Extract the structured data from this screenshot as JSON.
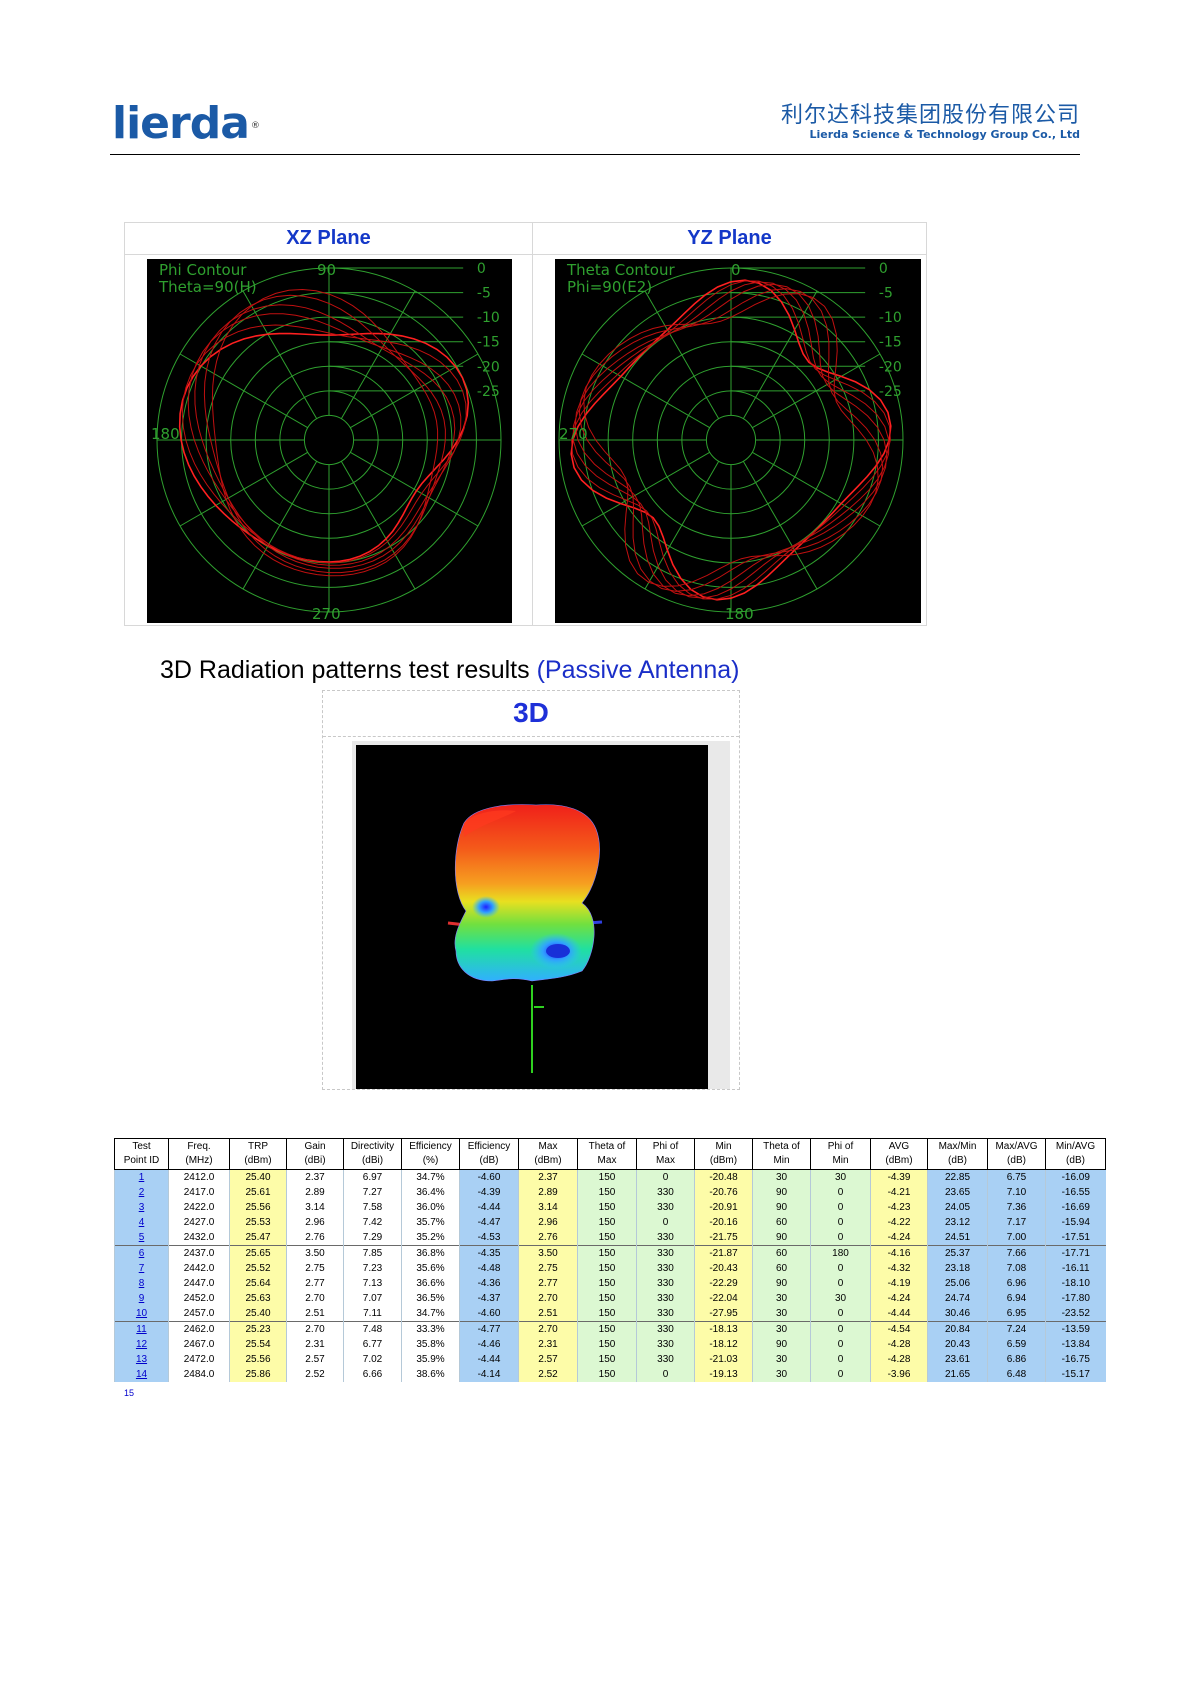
{
  "header": {
    "logo_text": "lierda",
    "logo_mark": "®",
    "company_cn": "利尔达科技集团股份有限公司",
    "company_en": "Lierda Science & Technology Group Co., Ltd"
  },
  "polar": {
    "xz": {
      "title": "XZ Plane",
      "contour_label": "Phi Contour",
      "param_label": "Theta=90(H)",
      "angle_top": "90",
      "angle_left": "180",
      "angle_bottom": "270",
      "rings": [
        "0",
        "-5",
        "-10",
        "-15",
        "-20",
        "-25"
      ]
    },
    "yz": {
      "title": "YZ Plane",
      "contour_label": "Theta Contour",
      "param_label": "Phi=90(E2)",
      "angle_top": "0",
      "angle_left": "270",
      "angle_bottom": "180",
      "rings": [
        "0",
        "-5",
        "-10",
        "-15",
        "-20",
        "-25"
      ]
    }
  },
  "section_heading": {
    "main": "3D Radiation patterns test results ",
    "accent": "(Passive Antenna)"
  },
  "view3d": {
    "title": "3D"
  },
  "table": {
    "headers": [
      [
        "Test",
        "Point ID"
      ],
      [
        "Freq.",
        "(MHz)"
      ],
      [
        "TRP",
        "(dBm)"
      ],
      [
        "Gain",
        "(dBi)"
      ],
      [
        "Directivity",
        "(dBi)"
      ],
      [
        "Efficiency",
        "(%)"
      ],
      [
        "Efficiency",
        "(dB)"
      ],
      [
        "Max",
        "(dBm)"
      ],
      [
        "Theta of",
        "Max"
      ],
      [
        "Phi of",
        "Max"
      ],
      [
        "Min",
        "(dBm)"
      ],
      [
        "Theta of",
        "Min"
      ],
      [
        "Phi of",
        "Min"
      ],
      [
        "AVG",
        "(dBm)"
      ],
      [
        "Max/Min",
        "(dB)"
      ],
      [
        "Max/AVG",
        "(dB)"
      ],
      [
        "Min/AVG",
        "(dB)"
      ]
    ],
    "rows": [
      [
        "1",
        "2412.0",
        "25.40",
        "2.37",
        "6.97",
        "34.7%",
        "-4.60",
        "2.37",
        "150",
        "0",
        "-20.48",
        "30",
        "30",
        "-4.39",
        "22.85",
        "6.75",
        "-16.09"
      ],
      [
        "2",
        "2417.0",
        "25.61",
        "2.89",
        "7.27",
        "36.4%",
        "-4.39",
        "2.89",
        "150",
        "330",
        "-20.76",
        "90",
        "0",
        "-4.21",
        "23.65",
        "7.10",
        "-16.55"
      ],
      [
        "3",
        "2422.0",
        "25.56",
        "3.14",
        "7.58",
        "36.0%",
        "-4.44",
        "3.14",
        "150",
        "330",
        "-20.91",
        "90",
        "0",
        "-4.23",
        "24.05",
        "7.36",
        "-16.69"
      ],
      [
        "4",
        "2427.0",
        "25.53",
        "2.96",
        "7.42",
        "35.7%",
        "-4.47",
        "2.96",
        "150",
        "0",
        "-20.16",
        "60",
        "0",
        "-4.22",
        "23.12",
        "7.17",
        "-15.94"
      ],
      [
        "5",
        "2432.0",
        "25.47",
        "2.76",
        "7.29",
        "35.2%",
        "-4.53",
        "2.76",
        "150",
        "330",
        "-21.75",
        "90",
        "0",
        "-4.24",
        "24.51",
        "7.00",
        "-17.51"
      ],
      [
        "6",
        "2437.0",
        "25.65",
        "3.50",
        "7.85",
        "36.8%",
        "-4.35",
        "3.50",
        "150",
        "330",
        "-21.87",
        "60",
        "180",
        "-4.16",
        "25.37",
        "7.66",
        "-17.71"
      ],
      [
        "7",
        "2442.0",
        "25.52",
        "2.75",
        "7.23",
        "35.6%",
        "-4.48",
        "2.75",
        "150",
        "330",
        "-20.43",
        "60",
        "0",
        "-4.32",
        "23.18",
        "7.08",
        "-16.11"
      ],
      [
        "8",
        "2447.0",
        "25.64",
        "2.77",
        "7.13",
        "36.6%",
        "-4.36",
        "2.77",
        "150",
        "330",
        "-22.29",
        "90",
        "0",
        "-4.19",
        "25.06",
        "6.96",
        "-18.10"
      ],
      [
        "9",
        "2452.0",
        "25.63",
        "2.70",
        "7.07",
        "36.5%",
        "-4.37",
        "2.70",
        "150",
        "330",
        "-22.04",
        "30",
        "30",
        "-4.24",
        "24.74",
        "6.94",
        "-17.80"
      ],
      [
        "10",
        "2457.0",
        "25.40",
        "2.51",
        "7.11",
        "34.7%",
        "-4.60",
        "2.51",
        "150",
        "330",
        "-27.95",
        "30",
        "0",
        "-4.44",
        "30.46",
        "6.95",
        "-23.52"
      ],
      [
        "11",
        "2462.0",
        "25.23",
        "2.70",
        "7.48",
        "33.3%",
        "-4.77",
        "2.70",
        "150",
        "330",
        "-18.13",
        "30",
        "0",
        "-4.54",
        "20.84",
        "7.24",
        "-13.59"
      ],
      [
        "12",
        "2467.0",
        "25.54",
        "2.31",
        "6.77",
        "35.8%",
        "-4.46",
        "2.31",
        "150",
        "330",
        "-18.12",
        "90",
        "0",
        "-4.28",
        "20.43",
        "6.59",
        "-13.84"
      ],
      [
        "13",
        "2472.0",
        "25.56",
        "2.57",
        "7.02",
        "35.9%",
        "-4.44",
        "2.57",
        "150",
        "330",
        "-21.03",
        "30",
        "0",
        "-4.28",
        "23.61",
        "6.86",
        "-16.75"
      ],
      [
        "14",
        "2484.0",
        "25.86",
        "2.52",
        "6.66",
        "38.6%",
        "-4.14",
        "2.52",
        "150",
        "0",
        "-19.13",
        "30",
        "0",
        "-3.96",
        "21.65",
        "6.48",
        "-15.17"
      ]
    ],
    "tail_id": "15"
  }
}
